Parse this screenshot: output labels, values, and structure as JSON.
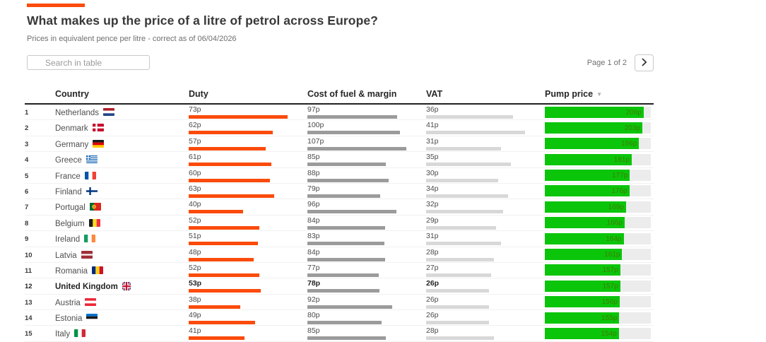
{
  "chart_data": {
    "type": "table",
    "title": "What makes up the price of a litre of petrol across Europe?",
    "subtitle": "Prices in equivalent pence per litre - correct as of 06/04/2026",
    "columns": [
      "Country",
      "Duty",
      "Cost of fuel & margin",
      "VAT",
      "Pump price"
    ],
    "unit": "p",
    "sort": {
      "column": "Pump price",
      "direction": "desc"
    },
    "rows": [
      {
        "rank": "1",
        "country": "Netherlands",
        "flag": "nl",
        "duty": 73,
        "cost": 97,
        "vat": 36,
        "pump": 206,
        "highlight": false
      },
      {
        "rank": "2",
        "country": "Denmark",
        "flag": "dk",
        "duty": 62,
        "cost": 100,
        "vat": 41,
        "pump": 203,
        "highlight": false
      },
      {
        "rank": "3",
        "country": "Germany",
        "flag": "de",
        "duty": 57,
        "cost": 107,
        "vat": 31,
        "pump": 196,
        "highlight": false
      },
      {
        "rank": "4",
        "country": "Greece",
        "flag": "gr",
        "duty": 61,
        "cost": 85,
        "vat": 35,
        "pump": 181,
        "highlight": false
      },
      {
        "rank": "5",
        "country": "France",
        "flag": "fr",
        "duty": 60,
        "cost": 88,
        "vat": 30,
        "pump": 177,
        "highlight": false
      },
      {
        "rank": "6",
        "country": "Finland",
        "flag": "fi",
        "duty": 63,
        "cost": 79,
        "vat": 34,
        "pump": 176,
        "highlight": false
      },
      {
        "rank": "7",
        "country": "Portugal",
        "flag": "pt",
        "duty": 40,
        "cost": 96,
        "vat": 32,
        "pump": 169,
        "highlight": false
      },
      {
        "rank": "8",
        "country": "Belgium",
        "flag": "be",
        "duty": 52,
        "cost": 84,
        "vat": 29,
        "pump": 166,
        "highlight": false
      },
      {
        "rank": "9",
        "country": "Ireland",
        "flag": "ie",
        "duty": 51,
        "cost": 83,
        "vat": 31,
        "pump": 164,
        "highlight": false
      },
      {
        "rank": "10",
        "country": "Latvia",
        "flag": "lv",
        "duty": 48,
        "cost": 84,
        "vat": 28,
        "pump": 161,
        "highlight": false
      },
      {
        "rank": "11",
        "country": "Romania",
        "flag": "ro",
        "duty": 52,
        "cost": 77,
        "vat": 27,
        "pump": 157,
        "highlight": false
      },
      {
        "rank": "12",
        "country": "United Kingdom",
        "flag": "gb",
        "duty": 53,
        "cost": 78,
        "vat": 26,
        "pump": 157,
        "highlight": true
      },
      {
        "rank": "13",
        "country": "Austria",
        "flag": "at",
        "duty": 38,
        "cost": 92,
        "vat": 26,
        "pump": 156,
        "highlight": false
      },
      {
        "rank": "14",
        "country": "Estonia",
        "flag": "ee",
        "duty": 49,
        "cost": 80,
        "vat": 26,
        "pump": 155,
        "highlight": false
      },
      {
        "rank": "15",
        "country": "Italy",
        "flag": "it",
        "duty": 41,
        "cost": 85,
        "vat": 28,
        "pump": 154,
        "highlight": false
      }
    ]
  },
  "search": {
    "placeholder": "Search in table"
  },
  "pagination": {
    "label": "Page 1 of 2"
  },
  "sort_icon": "▼",
  "colors": {
    "accent": "#fb4b0c",
    "duty_bar": "#fb4b0c",
    "cost_bar": "#9b9b9b",
    "vat_bar": "#d8d8d8",
    "pump_fill": "#0bc50b",
    "pump_track": "#ececec",
    "pump_value_text": "#3f7d00"
  }
}
